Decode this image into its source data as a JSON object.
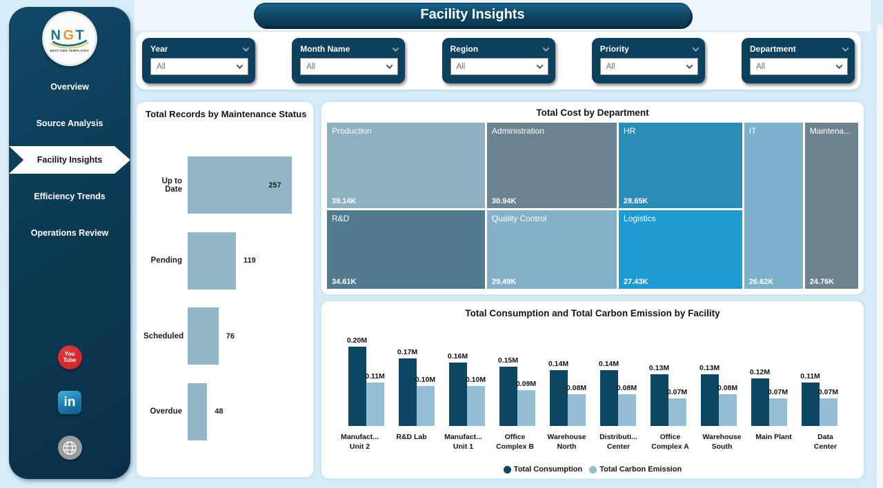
{
  "page": {
    "title": "Facility Insights"
  },
  "colors": {
    "sidebar": "#0c3a54",
    "filter_tile": "#0d405c",
    "accent_dark": "#0d4663",
    "accent_light": "#93bed3",
    "maintenance_bar": "#92b7c8"
  },
  "sidebar": {
    "logo": {
      "letters": [
        "N",
        "G",
        "T"
      ],
      "subtext": "NEXT GEN TEMPLATES"
    },
    "items": [
      {
        "label": "Overview",
        "active": false
      },
      {
        "label": "Source Analysis",
        "active": false
      },
      {
        "label": "Facility Insights",
        "active": true
      },
      {
        "label": "Efficiency Trends",
        "active": false
      },
      {
        "label": "Operations Review",
        "active": false
      }
    ],
    "social": [
      {
        "name": "youtube",
        "lines": [
          "You",
          "Tube"
        ]
      },
      {
        "name": "linkedin",
        "text": "in"
      },
      {
        "name": "website"
      }
    ]
  },
  "filters": {
    "items": [
      {
        "label": "Year",
        "value": "All"
      },
      {
        "label": "Month Name",
        "value": "All"
      },
      {
        "label": "Region",
        "value": "All"
      },
      {
        "label": "Priority",
        "value": "All"
      },
      {
        "label": "Department",
        "value": "All"
      }
    ]
  },
  "chart_data": [
    {
      "type": "bar",
      "orientation": "horizontal",
      "title": "Total Records by Maintenance Status",
      "categories": [
        "Up to Date",
        "Pending",
        "Scheduled",
        "Overdue"
      ],
      "values": [
        257,
        119,
        76,
        48
      ],
      "bar_color": "#92b7c8",
      "xlim": [
        0,
        290
      ],
      "grid": false
    },
    {
      "type": "treemap",
      "title": "Total Cost by Department",
      "items": [
        {
          "label": "Production",
          "value": 39140,
          "display_value": "39.14K",
          "color": "#8fb0c2"
        },
        {
          "label": "Administration",
          "value": 30940,
          "display_value": "30.94K",
          "color": "#6b8390"
        },
        {
          "label": "HR",
          "value": 28650,
          "display_value": "28.65K",
          "color": "#2c8cb8"
        },
        {
          "label": "R&D",
          "value": 34610,
          "display_value": "34.61K",
          "color": "#517b8e"
        },
        {
          "label": "Quality Control",
          "value": 29490,
          "display_value": "29.49K",
          "color": "#84b0ca"
        },
        {
          "label": "Logistics",
          "value": 27430,
          "display_value": "27.43K",
          "color": "#1e9cd2"
        },
        {
          "label": "IT",
          "value": 26620,
          "display_value": "26.62K",
          "color": "#7db0ca"
        },
        {
          "label": "Maintena...",
          "value": 24760,
          "display_value": "24.76K",
          "color": "#6d828e"
        }
      ],
      "layout": {
        "columns": [
          {
            "width_pct": 30.2,
            "tile_indexes": [
              0,
              3
            ],
            "split_pct": [
              52,
              48
            ]
          },
          {
            "width_pct": 24.8,
            "tile_indexes": [
              1,
              4
            ],
            "split_pct": [
              52,
              48
            ]
          },
          {
            "width_pct": 23.6,
            "tile_indexes": [
              2,
              5
            ],
            "split_pct": [
              52,
              48
            ]
          },
          {
            "width_pct": 11.2,
            "tile_indexes": [
              6
            ],
            "split_pct": [
              100
            ]
          },
          {
            "width_pct": 10.2,
            "tile_indexes": [
              7
            ],
            "split_pct": [
              100
            ]
          }
        ]
      }
    },
    {
      "type": "bar",
      "orientation": "vertical",
      "title": "Total Consumption and Total Carbon Emission by Facility",
      "categories": [
        [
          "Manufact...",
          "Unit 2"
        ],
        [
          "R&D Lab"
        ],
        [
          "Manufact...",
          "Unit 1"
        ],
        [
          "Office",
          "Complex B"
        ],
        [
          "Warehouse",
          "North"
        ],
        [
          "Distributi...",
          "Center"
        ],
        [
          "Office",
          "Complex A"
        ],
        [
          "Warehouse",
          "South"
        ],
        [
          "Main Plant"
        ],
        [
          "Data",
          "Center"
        ]
      ],
      "series": [
        {
          "name": "Total Consumption",
          "color": "#0d4663",
          "values": [
            0.2,
            0.17,
            0.16,
            0.15,
            0.14,
            0.14,
            0.13,
            0.13,
            0.12,
            0.11
          ],
          "display": [
            "0.20M",
            "0.17M",
            "0.16M",
            "0.15M",
            "0.14M",
            "0.14M",
            "0.13M",
            "0.13M",
            "0.12M",
            "0.11M"
          ]
        },
        {
          "name": "Total Carbon Emission",
          "color": "#93bed3",
          "values": [
            0.11,
            0.1,
            0.1,
            0.09,
            0.08,
            0.08,
            0.07,
            0.08,
            0.07,
            0.07
          ],
          "display": [
            "0.11M",
            "0.10M",
            "0.10M",
            "0.09M",
            "0.08M",
            "0.08M",
            "0.07M",
            "0.08M",
            "0.07M",
            "0.07M"
          ]
        }
      ],
      "ylim": [
        0,
        0.2
      ],
      "unit": "M",
      "legend_position": "bottom",
      "grid": false
    }
  ]
}
